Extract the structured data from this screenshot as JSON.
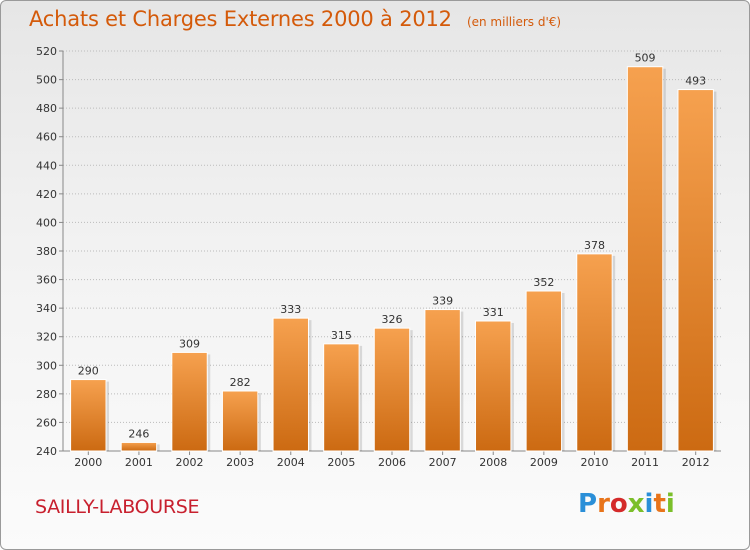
{
  "header": {
    "title": "Achats et Charges Externes 2000 à 2012",
    "subtitle": "(en milliers d'€)"
  },
  "footer": {
    "commune": "SAILLY-LABOURSE",
    "logo_text": "Proxiti"
  },
  "colors": {
    "title": "#d45a0a",
    "commune": "#c8202e",
    "bar_top": "#f6a14f",
    "bar_bottom": "#cc6a12",
    "grid": "#bbbbbb"
  },
  "chart_data": {
    "type": "bar",
    "title": "Achats et Charges Externes 2000 à 2012",
    "subtitle": "(en milliers d'€)",
    "xlabel": "",
    "ylabel": "",
    "categories": [
      "2000",
      "2001",
      "2002",
      "2003",
      "2004",
      "2005",
      "2006",
      "2007",
      "2008",
      "2009",
      "2010",
      "2011",
      "2012"
    ],
    "values": [
      290,
      246,
      309,
      282,
      333,
      315,
      326,
      339,
      331,
      352,
      378,
      509,
      493
    ],
    "ylim": [
      240,
      520
    ],
    "yticks": [
      240,
      260,
      280,
      300,
      320,
      340,
      360,
      380,
      400,
      420,
      440,
      460,
      480,
      500,
      520
    ],
    "grid": true,
    "legend": "none"
  }
}
